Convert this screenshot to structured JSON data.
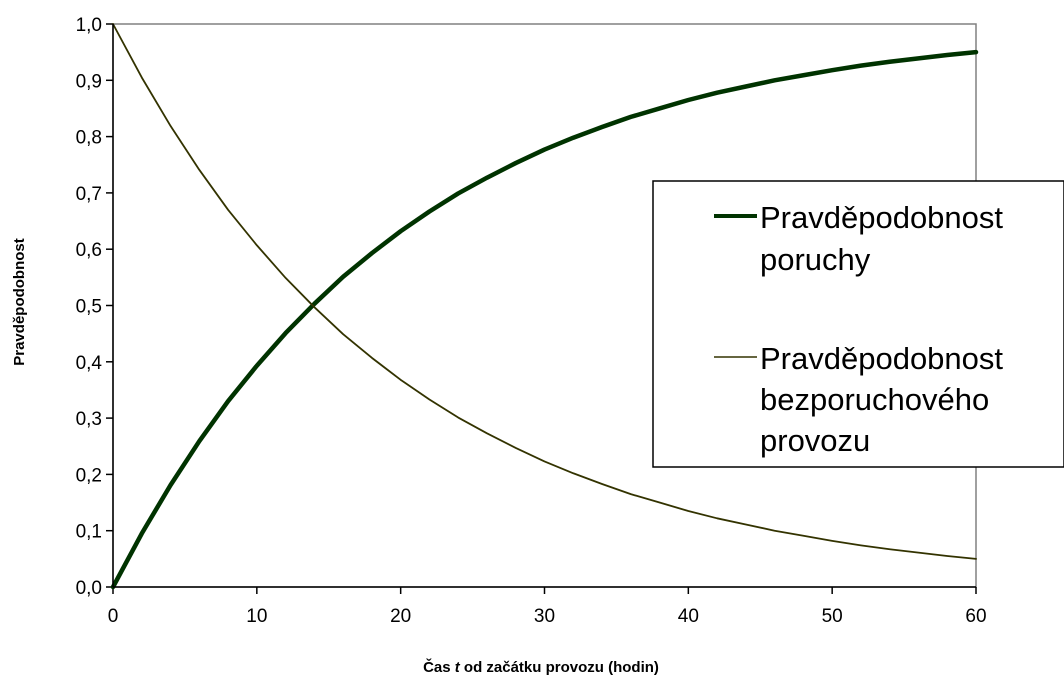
{
  "chart_data": {
    "type": "line",
    "xlabel_parts": [
      "Čas ",
      "t",
      " od začátku provozu (hodin)"
    ],
    "ylabel": "Pravděpodobnost",
    "xlim": [
      0,
      60
    ],
    "ylim": [
      0,
      1
    ],
    "x_ticks": [
      "0",
      "10",
      "20",
      "30",
      "40",
      "50",
      "60"
    ],
    "y_ticks": [
      "0,0",
      "0,1",
      "0,2",
      "0,3",
      "0,4",
      "0,5",
      "0,6",
      "0,7",
      "0,8",
      "0,9",
      "1,0"
    ],
    "grid": false,
    "legend_position": "right",
    "x": [
      0,
      2,
      4,
      6,
      8,
      10,
      12,
      14,
      16,
      18,
      20,
      22,
      24,
      26,
      28,
      30,
      32,
      34,
      36,
      38,
      40,
      42,
      44,
      46,
      48,
      50,
      52,
      54,
      56,
      58,
      60
    ],
    "series": [
      {
        "name_lines": [
          "Pravděpodobnost",
          "poruchy"
        ],
        "color": "#003300",
        "width": "thick",
        "values": [
          0.0,
          0.095,
          0.181,
          0.259,
          0.33,
          0.393,
          0.451,
          0.503,
          0.551,
          0.593,
          0.632,
          0.667,
          0.699,
          0.727,
          0.753,
          0.777,
          0.798,
          0.817,
          0.835,
          0.85,
          0.865,
          0.878,
          0.889,
          0.9,
          0.909,
          0.918,
          0.926,
          0.933,
          0.939,
          0.945,
          0.95
        ]
      },
      {
        "name_lines": [
          "Pravděpodobnost",
          "bezporuchového",
          "provozu"
        ],
        "color": "#333300",
        "width": "thin",
        "values": [
          1.0,
          0.905,
          0.819,
          0.741,
          0.67,
          0.607,
          0.549,
          0.497,
          0.449,
          0.407,
          0.368,
          0.333,
          0.301,
          0.273,
          0.247,
          0.223,
          0.202,
          0.183,
          0.165,
          0.15,
          0.135,
          0.122,
          0.111,
          0.1,
          0.091,
          0.082,
          0.074,
          0.067,
          0.061,
          0.055,
          0.05
        ]
      }
    ]
  }
}
